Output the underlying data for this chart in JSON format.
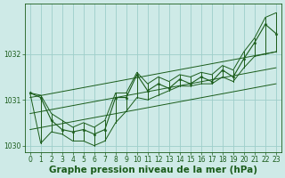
{
  "xlabel": "Graphe pression niveau de la mer (hPa)",
  "background_color": "#ceeae7",
  "grid_color": "#9ececa",
  "line_color": "#1a5c1a",
  "hours": [
    0,
    1,
    2,
    3,
    4,
    5,
    6,
    7,
    8,
    9,
    10,
    11,
    12,
    13,
    14,
    15,
    16,
    17,
    18,
    19,
    20,
    21,
    22,
    23
  ],
  "values": [
    1031.15,
    1031.05,
    1030.55,
    1030.35,
    1030.3,
    1030.35,
    1030.25,
    1030.35,
    1031.05,
    1031.05,
    1031.55,
    1031.2,
    1031.35,
    1031.25,
    1031.45,
    1031.35,
    1031.5,
    1031.4,
    1031.65,
    1031.5,
    1031.9,
    1032.25,
    1032.65,
    1032.45
  ],
  "min_vals": [
    1031.15,
    1030.05,
    1030.3,
    1030.25,
    1030.1,
    1030.1,
    1030.0,
    1030.1,
    1030.5,
    1030.75,
    1031.05,
    1031.0,
    1031.1,
    1031.2,
    1031.3,
    1031.3,
    1031.35,
    1031.35,
    1031.5,
    1031.4,
    1031.7,
    1031.95,
    1032.0,
    1032.05
  ],
  "max_vals": [
    1031.15,
    1031.1,
    1030.7,
    1030.55,
    1030.4,
    1030.5,
    1030.4,
    1030.55,
    1031.15,
    1031.15,
    1031.6,
    1031.35,
    1031.5,
    1031.4,
    1031.55,
    1031.5,
    1031.6,
    1031.55,
    1031.75,
    1031.65,
    1032.05,
    1032.35,
    1032.8,
    1032.9
  ],
  "trend_lines": [
    {
      "x": [
        0,
        23
      ],
      "y": [
        1031.05,
        1032.05
      ]
    },
    {
      "x": [
        0,
        23
      ],
      "y": [
        1030.7,
        1031.7
      ]
    },
    {
      "x": [
        0,
        23
      ],
      "y": [
        1030.35,
        1031.35
      ]
    }
  ],
  "ylim": [
    1029.85,
    1033.1
  ],
  "xlim": [
    -0.5,
    23.5
  ],
  "yticks": [
    1030,
    1031,
    1032
  ],
  "xticks": [
    0,
    1,
    2,
    3,
    4,
    5,
    6,
    7,
    8,
    9,
    10,
    11,
    12,
    13,
    14,
    15,
    16,
    17,
    18,
    19,
    20,
    21,
    22,
    23
  ],
  "tick_fontsize": 5.5,
  "xlabel_fontsize": 7.5,
  "line_width": 0.8,
  "marker_size": 2.5
}
